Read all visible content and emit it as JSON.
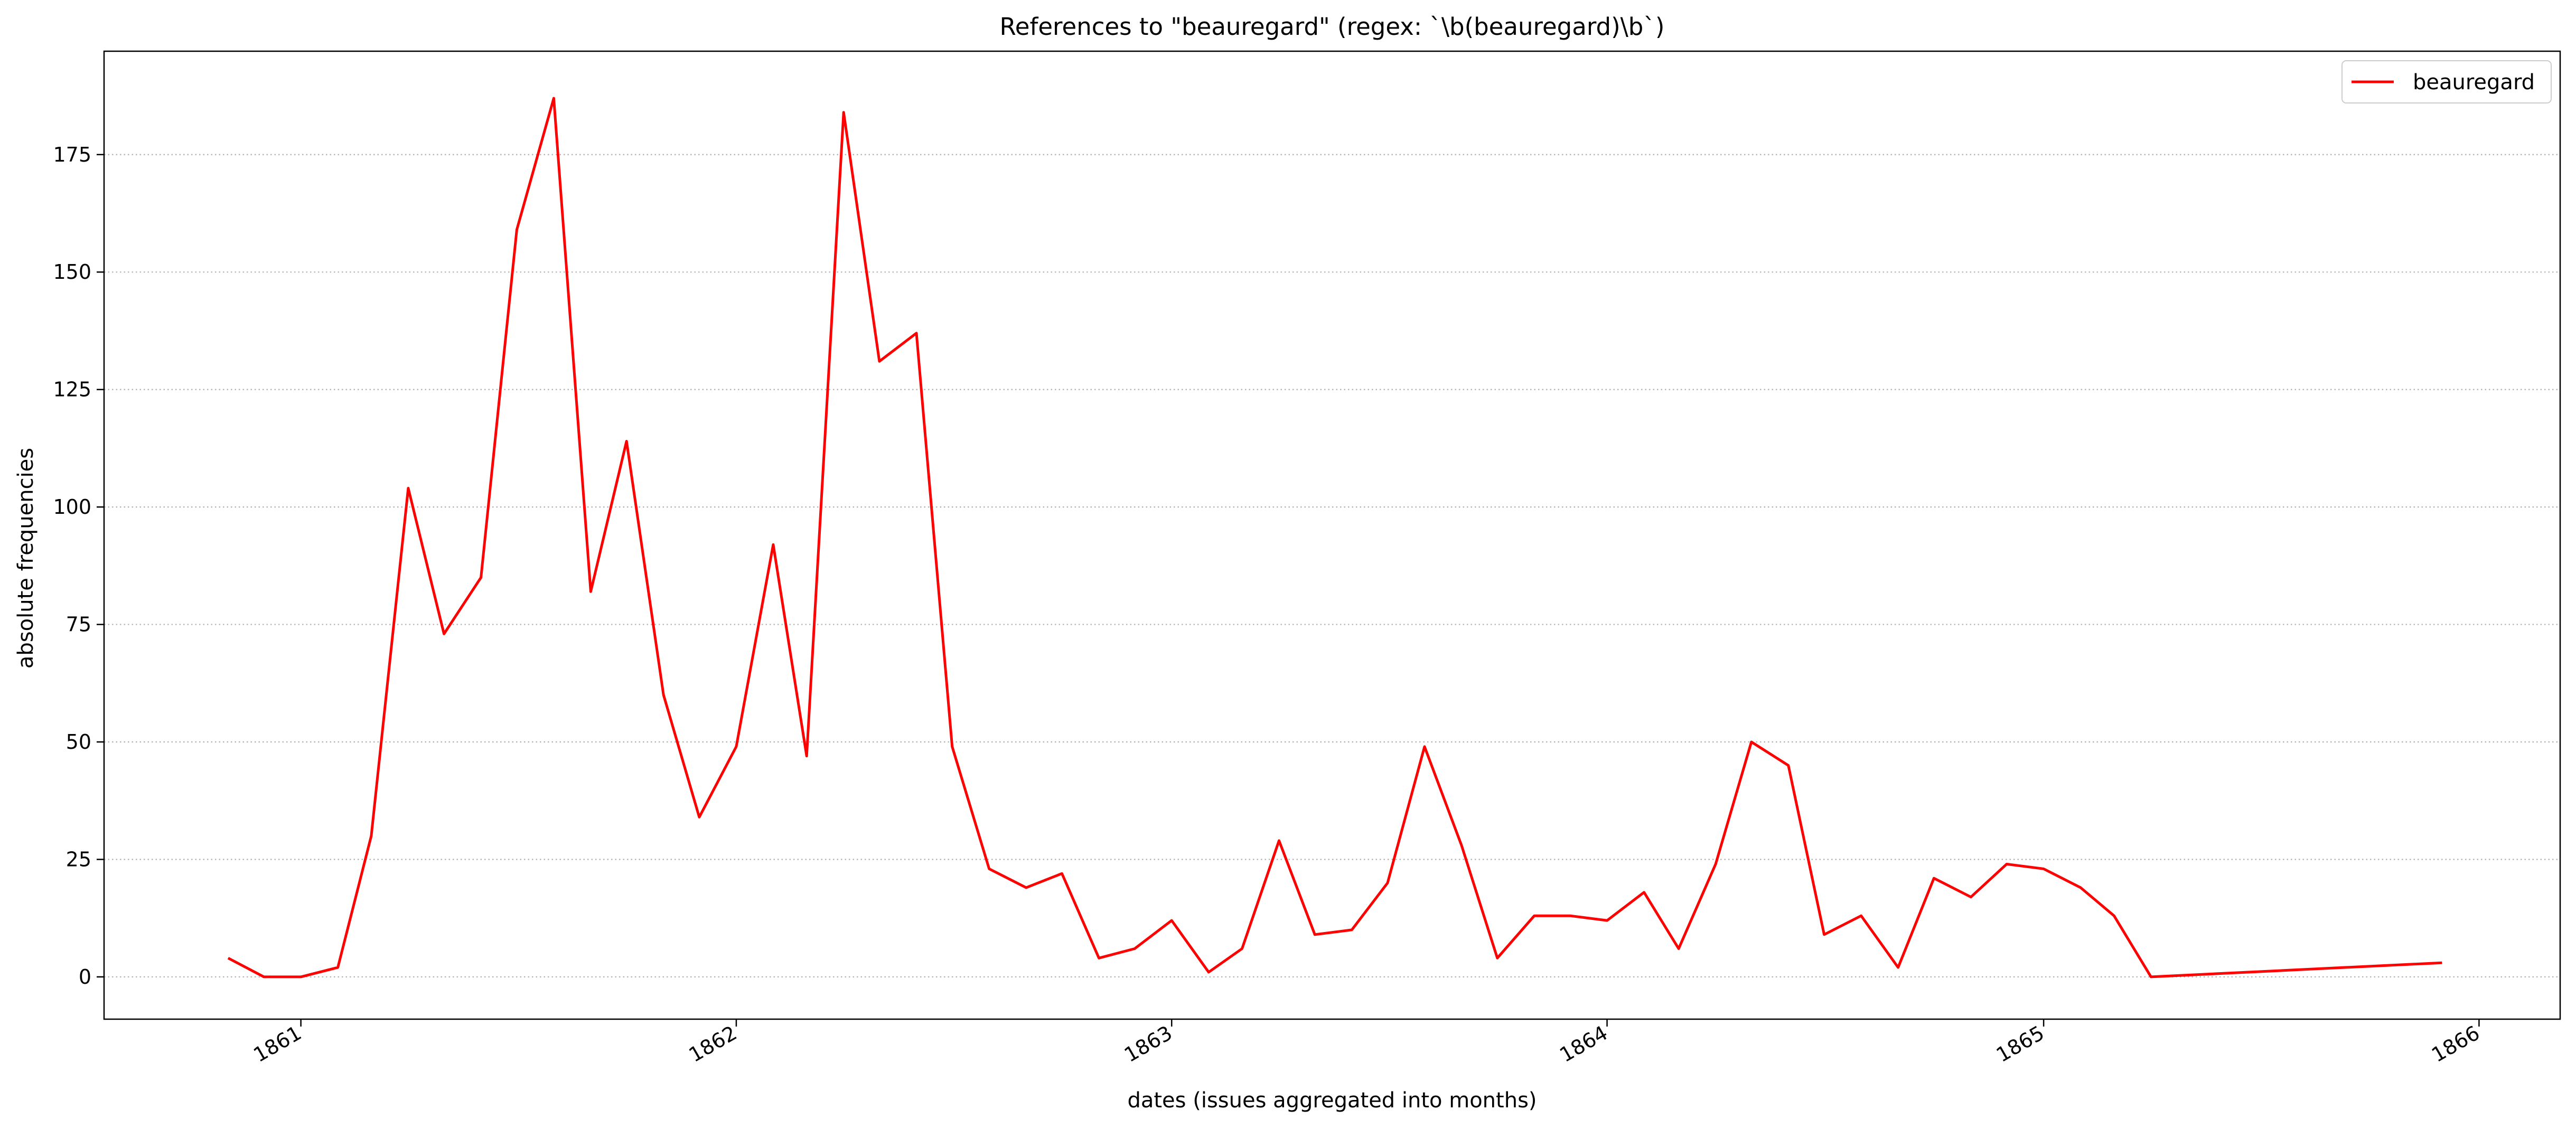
{
  "chart_data": {
    "type": "line",
    "title": "References to \"beauregard\" (regex: `\\b(beauregard)\\b`)",
    "xlabel": "dates (issues aggregated into months)",
    "ylabel": "absolute frequencies",
    "xlim": [
      "1860-07-20",
      "1866-03-10"
    ],
    "ylim": [
      -9,
      197
    ],
    "x_ticks": [
      "1861-01-01",
      "1862-01-01",
      "1863-01-01",
      "1864-01-01",
      "1865-01-01",
      "1866-01-01"
    ],
    "x_tick_labels": [
      "1861",
      "1862",
      "1863",
      "1864",
      "1865",
      "1866"
    ],
    "y_ticks": [
      0,
      25,
      50,
      75,
      100,
      125,
      150,
      175
    ],
    "y_tick_labels": [
      "0",
      "25",
      "50",
      "75",
      "100",
      "125",
      "150",
      "175"
    ],
    "grid": "horizontal dotted",
    "legend_position": "top-right",
    "color": "#ff0000",
    "series": [
      {
        "name": "beauregard",
        "x": [
          "1860-11-01",
          "1860-12-01",
          "1861-01-01",
          "1861-02-01",
          "1861-03-01",
          "1861-04-01",
          "1861-05-01",
          "1861-06-01",
          "1861-07-01",
          "1861-08-01",
          "1861-09-01",
          "1861-10-01",
          "1861-11-01",
          "1861-12-01",
          "1862-01-01",
          "1862-02-01",
          "1862-03-01",
          "1862-04-01",
          "1862-05-01",
          "1862-06-01",
          "1862-07-01",
          "1862-08-01",
          "1862-09-01",
          "1862-10-01",
          "1862-11-01",
          "1862-12-01",
          "1863-01-01",
          "1863-02-01",
          "1863-03-01",
          "1863-04-01",
          "1863-05-01",
          "1863-06-01",
          "1863-07-01",
          "1863-08-01",
          "1863-09-01",
          "1863-10-01",
          "1863-11-01",
          "1863-12-01",
          "1864-01-01",
          "1864-02-01",
          "1864-03-01",
          "1864-04-01",
          "1864-05-01",
          "1864-06-01",
          "1864-07-01",
          "1864-08-01",
          "1864-09-01",
          "1864-10-01",
          "1864-11-01",
          "1864-12-01",
          "1865-01-01",
          "1865-02-01",
          "1865-03-01",
          "1865-04-01",
          "1865-12-01"
        ],
        "values": [
          4,
          0,
          0,
          2,
          30,
          104,
          73,
          85,
          159,
          187,
          82,
          114,
          60,
          34,
          49,
          92,
          47,
          184,
          131,
          137,
          49,
          23,
          19,
          22,
          4,
          6,
          12,
          1,
          6,
          29,
          9,
          10,
          20,
          49,
          28,
          4,
          13,
          13,
          12,
          18,
          6,
          24,
          50,
          45,
          9,
          13,
          2,
          21,
          17,
          24,
          23,
          19,
          13,
          0,
          3
        ]
      }
    ]
  }
}
